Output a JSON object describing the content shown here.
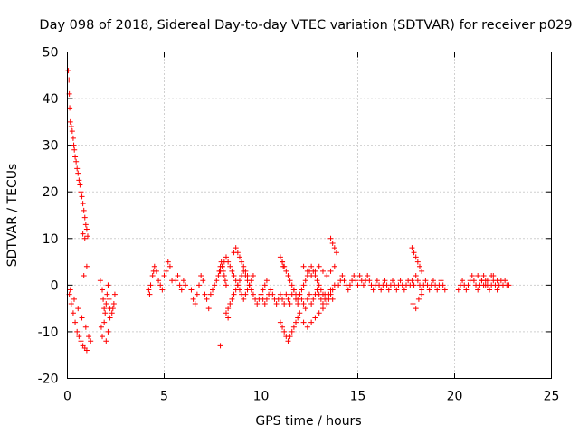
{
  "chart_data": {
    "type": "scatter",
    "title": "Day 098 of 2018, Sidereal Day-to-day VTEC variation (SDTVAR) for receiver p029",
    "xlabel": "GPS time / hours",
    "ylabel": "SDTVAR / TECUs",
    "xlim": [
      0,
      25
    ],
    "ylim": [
      -20,
      50
    ],
    "xticks": [
      "0",
      "5",
      "10",
      "15",
      "20",
      "25"
    ],
    "yticks": [
      "-20",
      "-10",
      "0",
      "10",
      "20",
      "30",
      "40",
      "50"
    ],
    "grid": true,
    "marker": "+",
    "color": "#ff0000",
    "series": [
      {
        "name": "SDTVAR",
        "x": [
          0.05,
          0.08,
          0.1,
          0.12,
          0.15,
          0.2,
          0.25,
          0.3,
          0.33,
          0.36,
          0.4,
          0.45,
          0.5,
          0.55,
          0.6,
          0.65,
          0.7,
          0.75,
          0.8,
          0.85,
          0.9,
          0.95,
          1.0,
          1.05,
          0.1,
          0.2,
          0.3,
          0.4,
          0.5,
          0.6,
          0.7,
          0.8,
          0.9,
          1.0,
          0.15,
          0.35,
          0.55,
          0.75,
          0.95,
          1.1,
          1.2,
          0.8,
          0.9,
          1.0,
          0.85,
          1.7,
          1.8,
          1.85,
          1.9,
          1.95,
          2.0,
          2.05,
          2.1,
          2.15,
          2.2,
          2.3,
          2.4,
          2.45,
          1.75,
          1.8,
          1.9,
          2.0,
          2.1,
          2.2,
          2.35,
          4.2,
          4.3,
          4.4,
          4.5,
          4.6,
          4.7,
          4.8,
          4.9,
          5.0,
          5.1,
          5.2,
          5.3,
          5.4,
          4.25,
          4.45,
          5.6,
          5.7,
          5.8,
          5.9,
          6.0,
          6.1,
          6.4,
          6.5,
          6.6,
          6.7,
          6.8,
          6.9,
          7.0,
          7.1,
          7.2,
          7.3,
          7.4,
          7.5,
          7.6,
          7.7,
          7.8,
          7.9,
          8.0,
          8.1,
          8.2,
          8.3,
          8.4,
          8.5,
          8.6,
          8.7,
          8.8,
          8.9,
          9.0,
          9.1,
          9.2,
          9.3,
          9.4,
          9.5,
          9.6,
          7.85,
          7.9,
          7.95,
          8.0,
          8.05,
          8.1,
          8.15,
          8.2,
          8.6,
          8.7,
          8.8,
          8.9,
          9.0,
          9.1,
          9.2,
          9.3,
          8.2,
          8.3,
          8.4,
          8.5,
          8.6,
          8.7,
          8.8,
          8.9,
          9.0,
          9.1,
          9.2,
          9.3,
          9.4,
          9.5,
          9.6,
          9.7,
          9.8,
          9.9,
          10.0,
          10.1,
          10.2,
          10.3,
          7.9,
          8.3,
          10.0,
          10.1,
          10.2,
          10.3,
          10.4,
          10.5,
          10.6,
          10.7,
          10.8,
          10.9,
          11.0,
          11.1,
          11.2,
          11.3,
          11.4,
          11.5,
          11.6,
          11.7,
          11.8,
          11.9,
          12.0,
          12.1,
          12.2,
          12.3,
          12.4,
          12.5,
          12.6,
          12.7,
          12.8,
          12.9,
          13.0,
          13.1,
          13.2,
          13.3,
          13.4,
          13.5,
          13.6,
          13.7,
          11.1,
          11.2,
          11.3,
          11.4,
          11.5,
          11.6,
          11.7,
          11.8,
          11.9,
          12.0,
          12.1,
          12.2,
          12.3,
          12.4,
          12.5,
          12.6,
          12.7,
          12.8,
          12.9,
          13.0,
          13.1,
          13.2,
          13.3,
          13.4,
          13.5,
          13.6,
          13.7,
          13.8,
          11.0,
          11.1,
          11.2,
          11.3,
          11.4,
          11.5,
          11.6,
          11.7,
          11.8,
          11.9,
          12.0,
          12.2,
          12.4,
          12.6,
          12.8,
          13.0,
          13.2,
          12.2,
          12.4,
          12.6,
          12.8,
          13.0,
          13.2,
          13.4,
          13.6,
          13.8,
          11.0,
          11.1,
          11.15,
          13.6,
          13.7,
          13.8,
          13.9,
          14.0,
          14.1,
          14.2,
          14.3,
          14.4,
          14.5,
          14.6,
          14.7,
          14.8,
          14.9,
          15.0,
          15.1,
          15.2,
          15.3,
          15.4,
          15.5,
          15.6,
          15.7,
          15.8,
          15.9,
          16.0,
          16.1,
          16.2,
          16.3,
          16.4,
          16.5,
          16.6,
          16.7,
          16.8,
          16.9,
          17.0,
          17.1,
          17.2,
          17.3,
          17.4,
          17.5,
          17.6,
          17.7,
          17.8,
          17.9,
          18.0,
          18.1,
          18.2,
          18.3,
          18.4,
          18.5,
          18.6,
          18.7,
          18.8,
          18.9,
          19.0,
          19.1,
          19.2,
          19.3,
          19.4,
          19.5,
          17.8,
          17.9,
          18.0,
          18.1,
          18.2,
          18.3,
          17.85,
          18.0,
          18.15,
          18.3,
          20.2,
          20.3,
          20.4,
          20.5,
          20.6,
          20.7,
          20.8,
          20.9,
          21.0,
          21.1,
          21.2,
          21.3,
          21.4,
          21.5,
          21.6,
          21.7,
          21.8,
          21.9,
          22.0,
          22.1,
          22.2,
          22.3,
          22.4,
          22.5,
          22.6,
          22.7,
          22.8,
          21.2,
          21.4,
          21.6,
          21.8,
          22.0,
          22.2,
          21.5,
          21.7,
          21.9
        ],
        "y": [
          46,
          44,
          41,
          38,
          35,
          34,
          33,
          31.5,
          30,
          29,
          27.5,
          26.5,
          25,
          24,
          22.5,
          21.5,
          20,
          19,
          17.5,
          16,
          14.5,
          13,
          12,
          10.5,
          -2,
          -4,
          -6,
          -8,
          -10,
          -11,
          -12,
          -13,
          -13.5,
          -14,
          -1,
          -3,
          -5,
          -7,
          -9,
          -11,
          -12,
          11,
          10,
          4,
          2,
          1,
          -1,
          -3,
          -5,
          -6,
          -4,
          -2,
          0,
          -3,
          -5,
          -6,
          -4,
          -2,
          -9,
          -11,
          -8,
          -12,
          -10,
          -7,
          -5,
          -1,
          0,
          2,
          4,
          3,
          1,
          0,
          -1,
          2,
          3,
          5,
          4,
          1,
          -2,
          3,
          1,
          2,
          0,
          -1,
          1,
          0,
          -1,
          -3,
          -4,
          -2,
          0,
          2,
          1,
          -2,
          -3,
          -5,
          -2,
          -1,
          0,
          1,
          2,
          3,
          4,
          5,
          6,
          5,
          4,
          3,
          2,
          1,
          0,
          -1,
          -2,
          -3,
          -2,
          -1,
          0,
          1,
          2,
          3,
          4,
          5,
          4,
          3,
          2,
          1,
          0,
          7,
          8,
          7,
          6,
          5,
          4,
          3,
          2,
          -6,
          -5,
          -4,
          -3,
          -2,
          -1,
          0,
          1,
          2,
          3,
          2,
          1,
          0,
          -1,
          -2,
          -3,
          -4,
          -3,
          -2,
          -1,
          0,
          1,
          -13,
          -7,
          -2,
          -3,
          -4,
          -3,
          -2,
          -1,
          -2,
          -3,
          -4,
          -3,
          -2,
          -3,
          -4,
          -2,
          -3,
          -4,
          -2,
          -1,
          -3,
          -4,
          -2,
          -3,
          -4,
          -5,
          -3,
          -2,
          -4,
          -3,
          -2,
          -1,
          -2,
          -3,
          -4,
          -2,
          -3,
          -2,
          -1,
          -3,
          5,
          4,
          3,
          2,
          1,
          0,
          -1,
          -2,
          -3,
          -2,
          -1,
          0,
          1,
          2,
          3,
          4,
          3,
          2,
          1,
          0,
          -1,
          -2,
          -3,
          -4,
          -3,
          -2,
          -1,
          0,
          -8,
          -9,
          -10,
          -11,
          -12,
          -11,
          -10,
          -9,
          -8,
          -7,
          -6,
          -8,
          -9,
          -8,
          -7,
          -6,
          -5,
          4,
          3,
          2,
          3,
          4,
          3,
          2,
          3,
          4,
          6,
          5,
          4,
          10,
          9,
          8,
          7,
          0,
          1,
          2,
          1,
          0,
          -1,
          0,
          1,
          2,
          1,
          0,
          2,
          1,
          0,
          1,
          2,
          1,
          0,
          -1,
          0,
          1,
          0,
          -1,
          0,
          1,
          0,
          -1,
          0,
          1,
          0,
          -1,
          0,
          1,
          0,
          -1,
          0,
          1,
          0,
          1,
          0,
          2,
          1,
          0,
          -1,
          0,
          1,
          0,
          -1,
          0,
          1,
          0,
          -1,
          0,
          1,
          0,
          -1,
          8,
          7,
          6,
          5,
          4,
          3,
          -4,
          -5,
          -3,
          -2,
          -1,
          0,
          1,
          0,
          -1,
          0,
          1,
          2,
          1,
          0,
          -1,
          0,
          1,
          2,
          1,
          0,
          -1,
          0,
          1,
          0,
          -1,
          0,
          1,
          0,
          1,
          0,
          0,
          2,
          1,
          0,
          -1,
          2,
          1,
          0,
          1,
          2
        ]
      }
    ]
  }
}
